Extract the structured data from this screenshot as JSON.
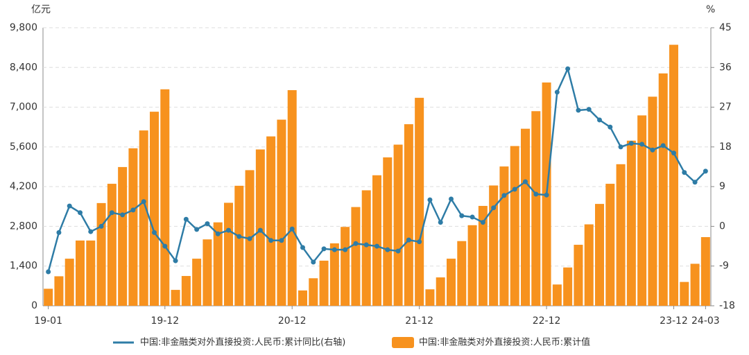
{
  "chart_data": {
    "type": "bar-line",
    "y_unit": "亿元",
    "y2_unit": "%",
    "categories": [
      "19-01",
      null,
      null,
      null,
      null,
      null,
      null,
      null,
      null,
      null,
      null,
      "19-12",
      null,
      null,
      null,
      null,
      null,
      null,
      null,
      null,
      null,
      null,
      null,
      "20-12",
      null,
      null,
      null,
      null,
      null,
      null,
      null,
      null,
      null,
      null,
      null,
      "21-12",
      null,
      null,
      null,
      null,
      null,
      null,
      null,
      null,
      null,
      null,
      null,
      "22-12",
      null,
      null,
      null,
      null,
      null,
      null,
      null,
      null,
      null,
      null,
      null,
      "23-12",
      null,
      null,
      "24-03"
    ],
    "series": [
      {
        "name": "中国:非金融类对外直接投资:人民币:累计同比(右轴)",
        "color": "#2e7ca6",
        "kind": "line",
        "axis": "y2",
        "values": [
          -10.3,
          -1.4,
          4.6,
          3.1,
          -1.2,
          0,
          3.1,
          2.6,
          3.7,
          5.6,
          -1.4,
          -4.5,
          -7.8,
          1.6,
          -0.7,
          0.6,
          -1.7,
          -0.9,
          -2.3,
          -2.8,
          -0.9,
          -3.2,
          -3.2,
          -0.6,
          -4.8,
          -8.1,
          -5.1,
          -5.3,
          -5.3,
          -3.9,
          -4.2,
          -4.5,
          -5.3,
          -5.6,
          -3.1,
          -3.5,
          6.0,
          0.9,
          6.2,
          2.4,
          2.1,
          0.9,
          4.2,
          7.0,
          8.4,
          10.1,
          7.3,
          7.1,
          30.4,
          35.7,
          26.3,
          26.5,
          24.1,
          22.5,
          18.0,
          18.8,
          18.6,
          17.3,
          18.3,
          16.6,
          12.2,
          10.0,
          12.5
        ]
      },
      {
        "name": "中国:非金融类对外直接投资:人民币:累计值",
        "color": "#f7921e",
        "kind": "bar",
        "values": [
          600,
          1040,
          1660,
          2300,
          2300,
          3620,
          4300,
          4890,
          5550,
          6180,
          6840,
          7630,
          560,
          1050,
          1660,
          2340,
          2940,
          3630,
          4230,
          4780,
          5510,
          5970,
          6560,
          7600,
          540,
          970,
          1590,
          2200,
          2780,
          3480,
          4070,
          4600,
          5230,
          5680,
          6400,
          7330,
          580,
          1000,
          1660,
          2280,
          2840,
          3520,
          4240,
          4910,
          5630,
          6240,
          6860,
          7870,
          750,
          1350,
          2150,
          2870,
          3590,
          4300,
          4990,
          5820,
          6710,
          7370,
          8190,
          9200,
          840,
          1480,
          2420
        ]
      }
    ],
    "ylim": [
      0,
      9800
    ],
    "yticks": [
      0,
      {
        "value": 1400,
        "label": "1,400"
      },
      {
        "value": 2800,
        "label": "2,800"
      },
      {
        "value": 4200,
        "label": "4,200"
      },
      {
        "value": 5600,
        "label": "5,600"
      },
      {
        "value": 7000,
        "label": "7,000"
      },
      {
        "value": 8400,
        "label": "8,400"
      },
      {
        "value": 9800,
        "label": "9,800"
      }
    ],
    "y2lim": [
      -18,
      45
    ],
    "y2ticks": [
      -18,
      -9,
      0,
      9,
      18,
      27,
      36,
      45
    ],
    "grid": true
  }
}
